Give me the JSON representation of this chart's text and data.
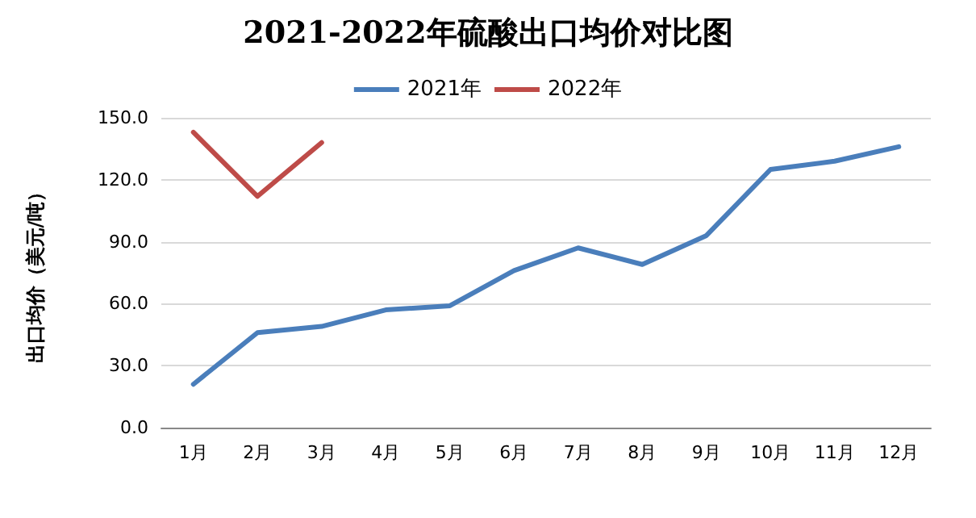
{
  "chart_data": {
    "type": "line",
    "title": "2021-2022年硫酸出口均价对比图",
    "ylabel": "出口均价（美元/吨）",
    "categories": [
      "1月",
      "2月",
      "3月",
      "4月",
      "5月",
      "6月",
      "7月",
      "8月",
      "9月",
      "10月",
      "11月",
      "12月"
    ],
    "series": [
      {
        "name": "2021年",
        "color": "#4a7ebb",
        "values": [
          21,
          46,
          49,
          57,
          59,
          76,
          87,
          79,
          93,
          125,
          129,
          136
        ]
      },
      {
        "name": "2022年",
        "color": "#be4b48",
        "values": [
          143,
          112,
          138,
          null,
          null,
          null,
          null,
          null,
          null,
          null,
          null,
          null
        ]
      }
    ],
    "ylim": [
      0,
      150
    ],
    "yticks": [
      {
        "value": 0,
        "label": "0.0"
      },
      {
        "value": 30,
        "label": "30.0"
      },
      {
        "value": 60,
        "label": "60.0"
      },
      {
        "value": 90,
        "label": "90.0"
      },
      {
        "value": 120,
        "label": "120.0"
      },
      {
        "value": 150,
        "label": "150.0"
      }
    ],
    "grid": "y",
    "legend": "top",
    "marker": "none",
    "line_style": "solid"
  }
}
